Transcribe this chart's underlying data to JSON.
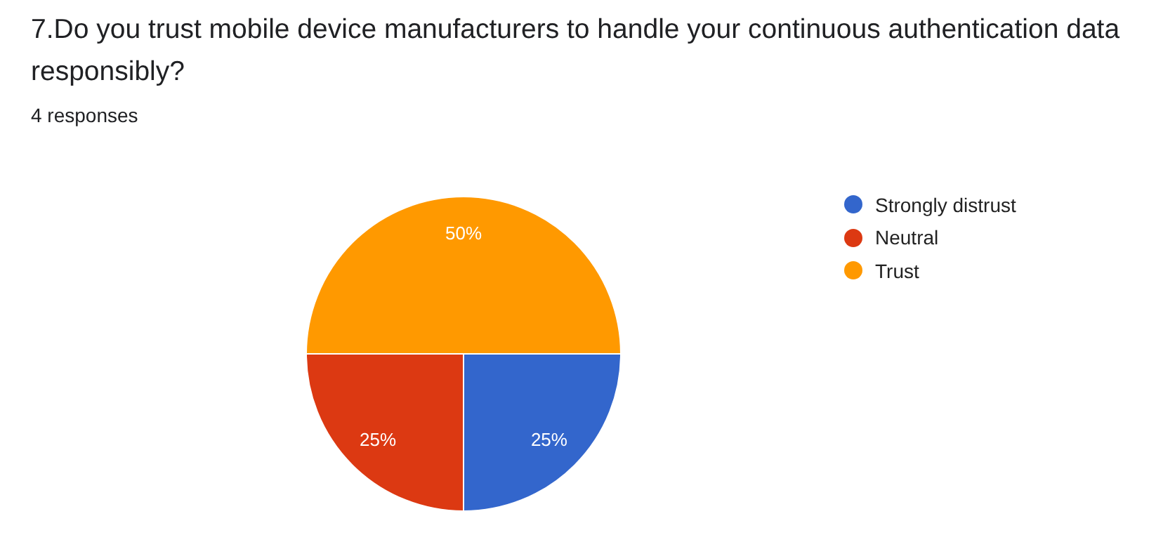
{
  "chart_data": {
    "type": "pie",
    "title": "7.Do you trust mobile device manufacturers to handle your continuous authentication data responsibly?",
    "subtitle": "4 responses",
    "categories": [
      "Strongly distrust",
      "Neutral",
      "Trust"
    ],
    "values": [
      25,
      25,
      50
    ],
    "colors": [
      "#3366cc",
      "#dc3912",
      "#ff9900"
    ],
    "value_labels": [
      "25%",
      "25%",
      "50%"
    ],
    "legend": "right"
  }
}
